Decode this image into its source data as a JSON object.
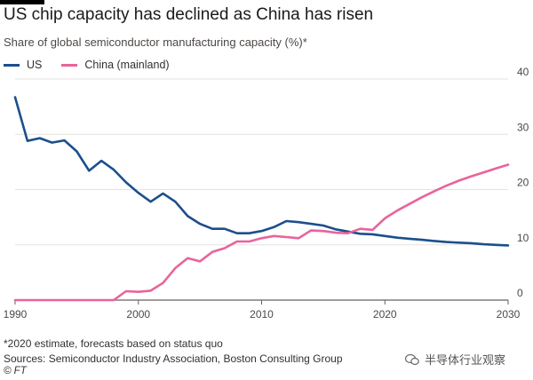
{
  "title": "US chip capacity has declined as China has risen",
  "subtitle": "Share of global semiconductor manufacturing capacity (%)*",
  "footnote": "*2020 estimate, forecasts based on status quo",
  "source": "Sources: Semiconductor Industry Association, Boston Consulting Group",
  "copyright": "© FT",
  "watermark": "半导体行业观察",
  "chart_data": {
    "type": "line",
    "title": "US chip capacity has declined as China has risen",
    "subtitle": "Share of global semiconductor manufacturing capacity (%)*",
    "xlabel": "",
    "ylabel": "",
    "xlim": [
      1990,
      2030
    ],
    "ylim": [
      0,
      40
    ],
    "x_ticks": [
      1990,
      2000,
      2010,
      2020,
      2030
    ],
    "y_ticks": [
      0,
      10,
      20,
      30,
      40
    ],
    "y_axis_side": "right",
    "grid": true,
    "legend_position": "top-left",
    "series": [
      {
        "name": "US",
        "color": "#1b4f8c",
        "x": [
          1990,
          1991,
          1992,
          1993,
          1994,
          1995,
          1996,
          1997,
          1998,
          1999,
          2000,
          2001,
          2002,
          2003,
          2004,
          2005,
          2006,
          2007,
          2008,
          2009,
          2010,
          2011,
          2012,
          2013,
          2014,
          2015,
          2016,
          2017,
          2018,
          2019,
          2020,
          2021,
          2022,
          2023,
          2024,
          2025,
          2026,
          2027,
          2028,
          2029,
          2030
        ],
        "values": [
          36.7,
          28.8,
          29.3,
          28.5,
          28.9,
          26.9,
          23.4,
          25.2,
          23.6,
          21.3,
          19.4,
          17.8,
          19.3,
          17.8,
          15.2,
          13.8,
          12.9,
          12.9,
          12.1,
          12.1,
          12.5,
          13.2,
          14.3,
          14.1,
          13.8,
          13.5,
          12.8,
          12.4,
          12.0,
          11.9,
          11.6,
          11.3,
          11.1,
          10.9,
          10.7,
          10.5,
          10.4,
          10.3,
          10.1,
          10.0,
          9.9
        ]
      },
      {
        "name": "China (mainland)",
        "color": "#e8649b",
        "x": [
          1990,
          1991,
          1992,
          1993,
          1994,
          1995,
          1996,
          1997,
          1998,
          1999,
          2000,
          2001,
          2002,
          2003,
          2004,
          2005,
          2006,
          2007,
          2008,
          2009,
          2010,
          2011,
          2012,
          2013,
          2014,
          2015,
          2016,
          2017,
          2018,
          2019,
          2020,
          2021,
          2022,
          2023,
          2024,
          2025,
          2026,
          2027,
          2028,
          2029,
          2030
        ],
        "values": [
          0,
          0,
          0,
          0,
          0,
          0,
          0,
          0,
          0,
          1.6,
          1.5,
          1.7,
          3.1,
          5.8,
          7.6,
          7.0,
          8.7,
          9.4,
          10.6,
          10.6,
          11.2,
          11.6,
          11.4,
          11.2,
          12.6,
          12.5,
          12.2,
          12.1,
          12.9,
          12.7,
          14.8,
          16.2,
          17.4,
          18.6,
          19.7,
          20.7,
          21.6,
          22.4,
          23.1,
          23.8,
          24.5
        ]
      }
    ]
  }
}
